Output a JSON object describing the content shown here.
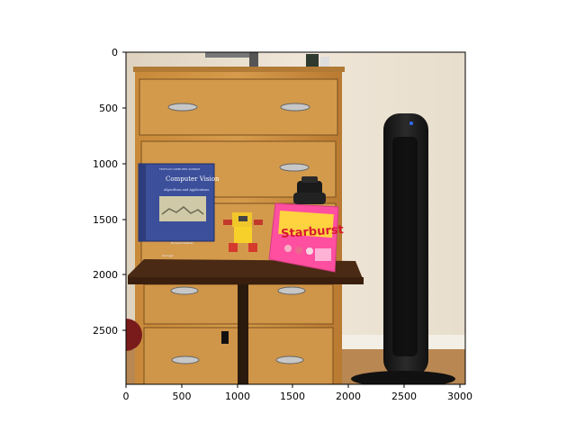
{
  "figure": {
    "x_ticks": [
      "0",
      "500",
      "1000",
      "1500",
      "2000",
      "2500",
      "3000"
    ],
    "y_ticks": [
      "0",
      "500",
      "1000",
      "1500",
      "2000",
      "2500"
    ]
  },
  "photo": {
    "book": {
      "title": "Computer Vision",
      "subtitle": "Algorithms and Applications",
      "author": "Richard Szeliski",
      "series": "TEXTS IN COMPUTER SCIENCE",
      "publisher": "Springer"
    },
    "candy_bag": {
      "brand": "Starburst"
    },
    "colors": {
      "wall": "#e7dccb",
      "dresser": "#c98a3f",
      "dresser_dark": "#8a5a25",
      "book": "#3b4f9a",
      "candy": "#ff4fa0",
      "tower_fan": "#1c1c1c",
      "floor": "#b98752"
    }
  }
}
